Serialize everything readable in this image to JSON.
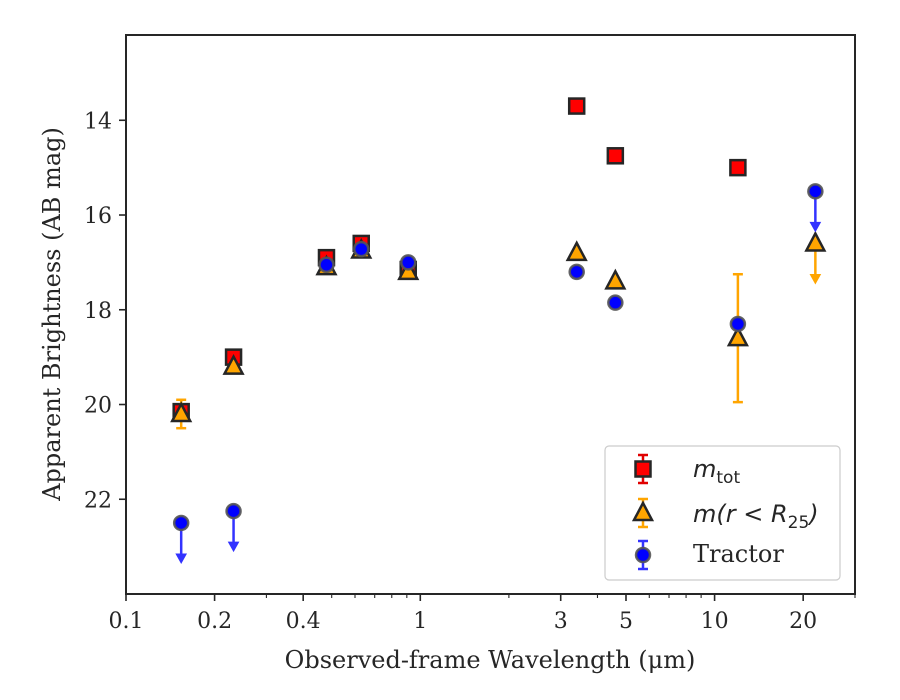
{
  "chart_data": {
    "type": "scatter",
    "xlabel": "Observed-frame Wavelength (μm)",
    "ylabel": "Apparent Brightness (AB mag)",
    "x_scale": "log",
    "xlim": [
      0.1,
      30
    ],
    "ylim": [
      24.0,
      12.2
    ],
    "y_inverted": true,
    "x_ticks": [
      {
        "value": 0.1,
        "label": "0.1"
      },
      {
        "value": 0.2,
        "label": "0.2"
      },
      {
        "value": 0.4,
        "label": "0.4"
      },
      {
        "value": 1,
        "label": "1"
      },
      {
        "value": 3,
        "label": "3"
      },
      {
        "value": 5,
        "label": "5"
      },
      {
        "value": 10,
        "label": "10"
      },
      {
        "value": 20,
        "label": "20"
      }
    ],
    "y_ticks": [
      {
        "value": 14,
        "label": "14"
      },
      {
        "value": 16,
        "label": "16"
      },
      {
        "value": 18,
        "label": "18"
      },
      {
        "value": 20,
        "label": "20"
      },
      {
        "value": 22,
        "label": "22"
      }
    ],
    "grid": false,
    "legend_position": "bottom-right",
    "series": [
      {
        "name": "m_tot",
        "marker": "square",
        "color": "#ff0000",
        "error_color": "#e00000",
        "points": [
          {
            "x": 0.154,
            "y": 20.15
          },
          {
            "x": 0.232,
            "y": 19.0
          },
          {
            "x": 0.48,
            "y": 16.9
          },
          {
            "x": 0.63,
            "y": 16.6
          },
          {
            "x": 0.91,
            "y": 17.15
          },
          {
            "x": 3.4,
            "y": 13.7
          },
          {
            "x": 4.6,
            "y": 14.75
          },
          {
            "x": 12.0,
            "y": 15.0
          }
        ]
      },
      {
        "name": "m(r<R_25)",
        "marker": "triangle",
        "color": "#ffa500",
        "error_color": "#ffa500",
        "points": [
          {
            "x": 0.154,
            "y": 20.2,
            "err": 0.3
          },
          {
            "x": 0.232,
            "y": 19.2
          },
          {
            "x": 0.48,
            "y": 17.1
          },
          {
            "x": 0.63,
            "y": 16.75
          },
          {
            "x": 0.91,
            "y": 17.2
          },
          {
            "x": 3.4,
            "y": 16.8
          },
          {
            "x": 4.6,
            "y": 17.4
          },
          {
            "x": 12.0,
            "y": 18.6,
            "err": 1.35
          },
          {
            "x": 22.0,
            "y": 16.6,
            "upper_limit": true
          }
        ]
      },
      {
        "name": "Tractor",
        "marker": "circle",
        "color": "#0000ff",
        "error_color": "#3333ff",
        "points": [
          {
            "x": 0.154,
            "y": 22.5,
            "upper_limit": true
          },
          {
            "x": 0.232,
            "y": 22.25,
            "upper_limit": true
          },
          {
            "x": 0.48,
            "y": 17.05
          },
          {
            "x": 0.63,
            "y": 16.72
          },
          {
            "x": 0.91,
            "y": 17.0
          },
          {
            "x": 3.4,
            "y": 17.2
          },
          {
            "x": 4.6,
            "y": 17.85
          },
          {
            "x": 12.0,
            "y": 18.3
          },
          {
            "x": 22.0,
            "y": 15.5,
            "upper_limit": true
          }
        ]
      }
    ]
  },
  "legend": {
    "items": [
      {
        "base": "m",
        "sub": "tot",
        "rest": ""
      },
      {
        "base": "m(r < R",
        "sub": "25",
        "rest": ")"
      },
      {
        "base": "Tractor",
        "sub": "",
        "rest": ""
      }
    ]
  }
}
